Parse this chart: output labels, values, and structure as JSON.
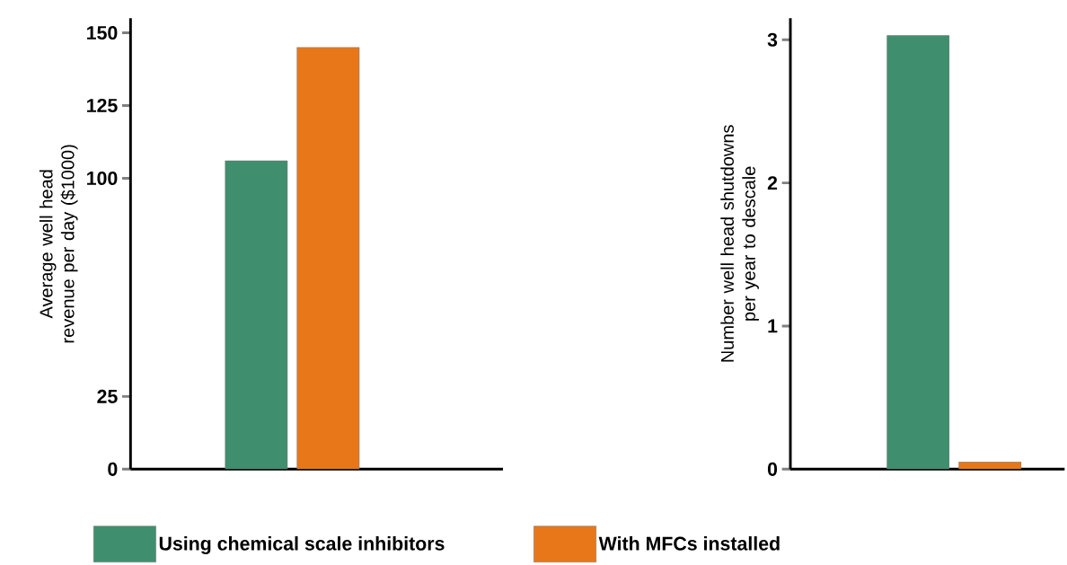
{
  "chart_data": [
    {
      "type": "bar",
      "ylabel": "Average well head revenue per day ($1000)",
      "categories": [
        null
      ],
      "ylim": [
        0,
        155
      ],
      "yticks": [
        0,
        25,
        100,
        125,
        150
      ],
      "legend": "bottom",
      "series": [
        {
          "name": "Using chemical scale inhibitors",
          "color": "#3f8f6e",
          "values": [
            106
          ]
        },
        {
          "name": "With MFCs installed",
          "color": "#e8771a",
          "values": [
            145
          ]
        }
      ]
    },
    {
      "type": "bar",
      "ylabel": "Number well head shutdowns per year to descale",
      "categories": [
        null
      ],
      "ylim": [
        0,
        3.15
      ],
      "yticks": [
        0,
        1,
        2,
        3
      ],
      "series": [
        {
          "color": "#3f8f6e",
          "values": [
            3.03
          ]
        },
        {
          "color": "#e8771a",
          "values": [
            0.05
          ]
        }
      ]
    }
  ]
}
